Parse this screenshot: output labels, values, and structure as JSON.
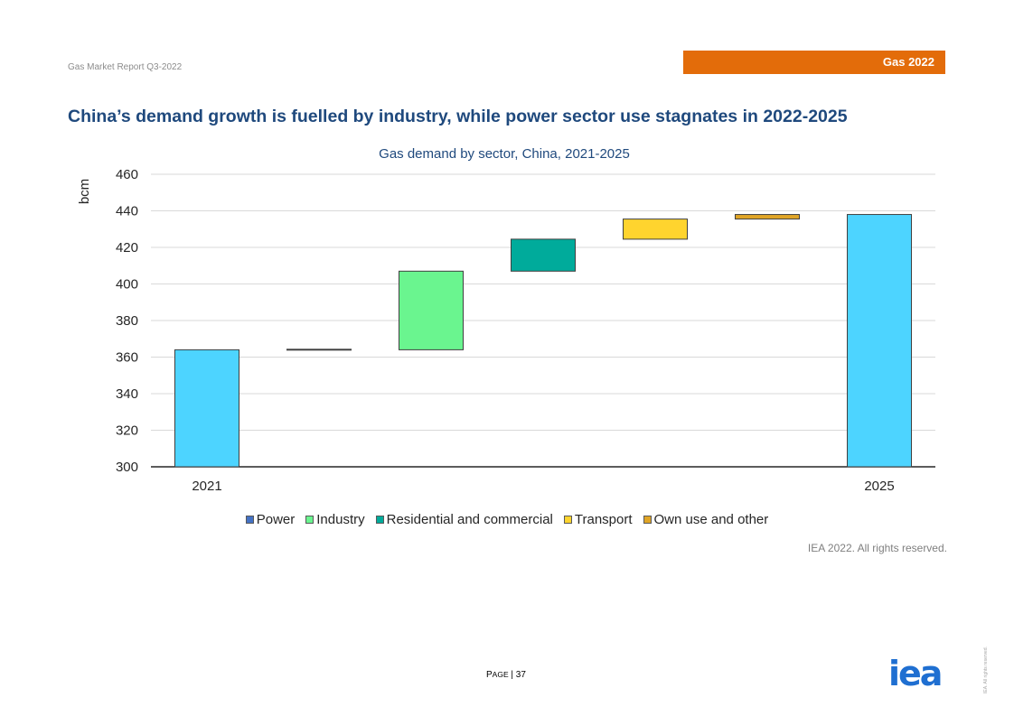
{
  "header": {
    "report_name": "Gas Market Report Q3-2022",
    "badge": "Gas 2022"
  },
  "headline": "China’s demand growth is fuelled by industry, while power sector use stagnates in 2022-2025",
  "chart_data": {
    "type": "waterfall",
    "title": "Gas demand by sector, China, 2021-2025",
    "ylabel": "bcm",
    "xlabel": "",
    "ylim": [
      300,
      460
    ],
    "yticks": [
      300,
      320,
      340,
      360,
      380,
      400,
      420,
      440,
      460
    ],
    "grid": true,
    "legend_position": "bottom",
    "steps": [
      {
        "label": "2021",
        "kind": "total",
        "start": 300,
        "end": 364,
        "color": "#4dd4ff"
      },
      {
        "label": "",
        "series": "Power",
        "kind": "delta",
        "start": 364,
        "end": 364.3,
        "color": "#4472c4"
      },
      {
        "label": "",
        "series": "Industry",
        "kind": "delta",
        "start": 364,
        "end": 407,
        "color": "#6af58f"
      },
      {
        "label": "",
        "series": "Residential and commercial",
        "kind": "delta",
        "start": 407,
        "end": 424.5,
        "color": "#00ab9b"
      },
      {
        "label": "",
        "series": "Transport",
        "kind": "delta",
        "start": 424.5,
        "end": 435.5,
        "color": "#ffd42e"
      },
      {
        "label": "",
        "series": "Own use and other",
        "kind": "delta",
        "start": 435.5,
        "end": 438,
        "color": "#e0a526"
      },
      {
        "label": "2025",
        "kind": "total",
        "start": 300,
        "end": 438,
        "color": "#4dd4ff"
      }
    ],
    "legend": [
      {
        "name": "Power",
        "color": "#4472c4"
      },
      {
        "name": "Industry",
        "color": "#6af58f"
      },
      {
        "name": "Residential and commercial",
        "color": "#00ab9b"
      },
      {
        "name": "Transport",
        "color": "#ffd42e"
      },
      {
        "name": "Own use and other",
        "color": "#e0a526"
      }
    ]
  },
  "source": "IEA 2022. All rights reserved.",
  "footer": {
    "page_word_first": "P",
    "page_word_rest": "AGE",
    "page_sep": " | 37",
    "logo_text": "iea",
    "vertical_rights": "IEA. All rights reserved."
  }
}
